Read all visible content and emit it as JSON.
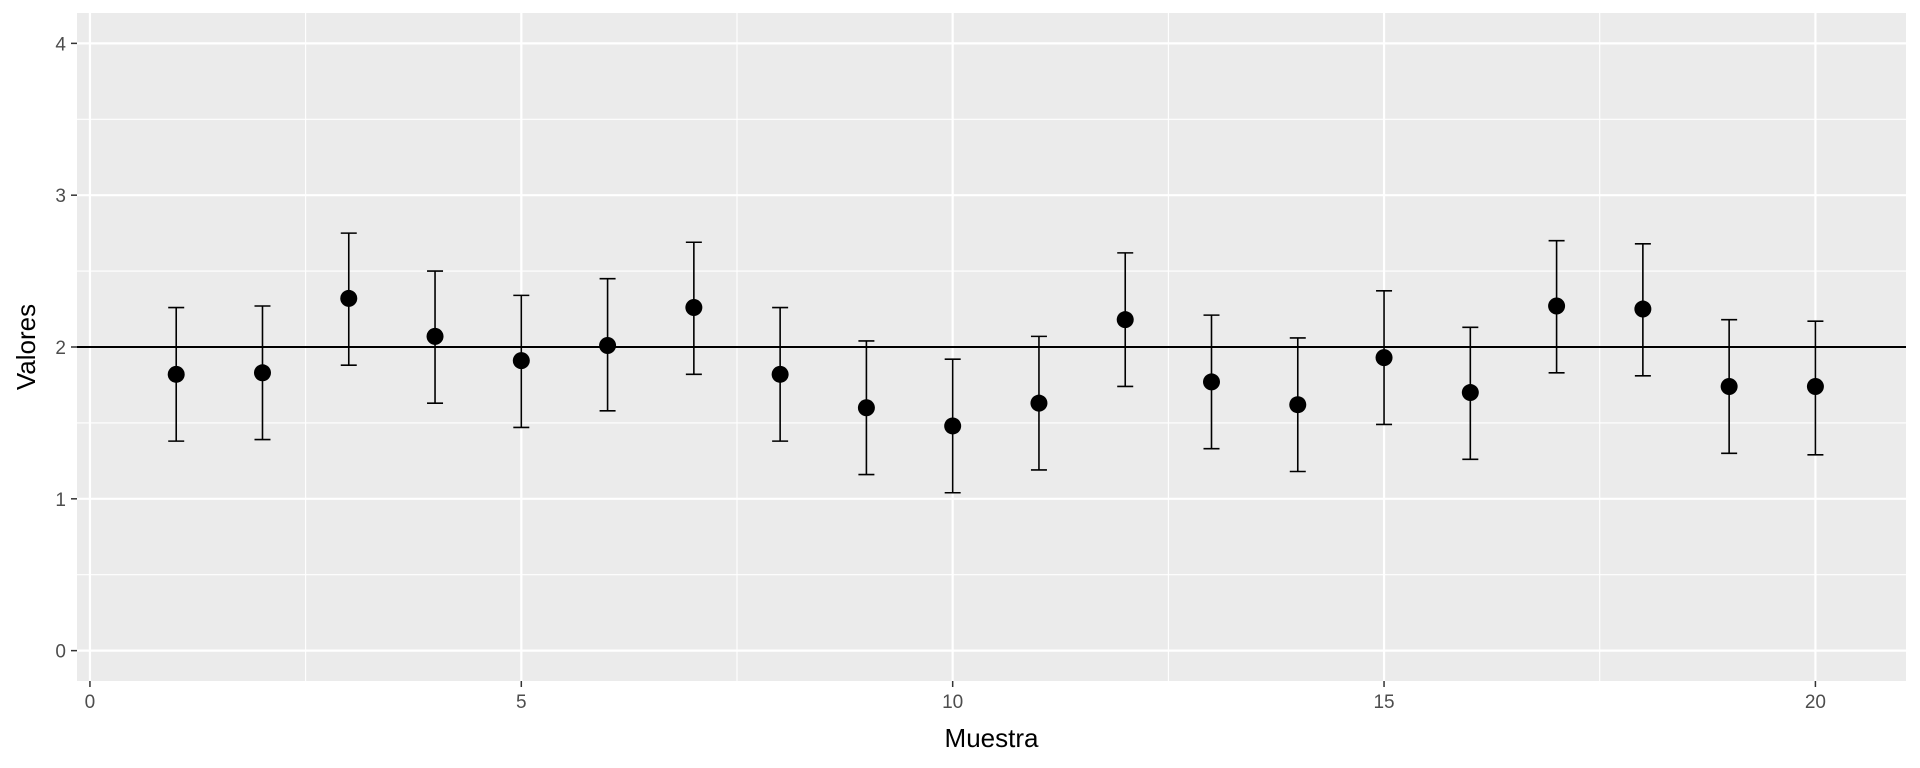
{
  "chart_data": {
    "type": "scatter",
    "title": "",
    "xlabel": "Muestra",
    "ylabel": "Valores",
    "xlim": [
      -0.15,
      21.05
    ],
    "ylim": [
      -0.2,
      4.2
    ],
    "x_ticks": [
      0,
      5,
      10,
      15,
      20
    ],
    "x_tick_labels": [
      "0",
      "5",
      "10",
      "15",
      "20"
    ],
    "y_ticks": [
      0,
      1,
      2,
      3,
      4
    ],
    "y_tick_labels": [
      "0",
      "1",
      "2",
      "3",
      "4"
    ],
    "grid": true,
    "reference_line": 2,
    "series": [
      {
        "x": [
          1,
          2,
          3,
          4,
          5,
          6,
          7,
          8,
          9,
          10,
          11,
          12,
          13,
          14,
          15,
          16,
          17,
          18,
          19,
          20
        ],
        "y": [
          1.82,
          1.83,
          2.32,
          2.07,
          1.91,
          2.01,
          2.26,
          1.82,
          1.6,
          1.48,
          1.63,
          2.18,
          1.77,
          1.62,
          1.93,
          1.7,
          2.27,
          2.25,
          1.74,
          1.74
        ],
        "ymin": [
          1.38,
          1.39,
          1.88,
          1.63,
          1.47,
          1.58,
          1.82,
          1.38,
          1.16,
          1.04,
          1.19,
          1.74,
          1.33,
          1.18,
          1.49,
          1.26,
          1.83,
          1.81,
          1.3,
          1.29
        ],
        "ymax": [
          2.26,
          2.27,
          2.75,
          2.5,
          2.34,
          2.45,
          2.69,
          2.26,
          2.04,
          1.92,
          2.07,
          2.62,
          2.21,
          2.06,
          2.37,
          2.13,
          2.7,
          2.68,
          2.18,
          2.17
        ]
      }
    ],
    "colors": {
      "panel_bg": "#ebebeb",
      "grid": "#ffffff",
      "points": "#000000",
      "errorbars": "#000000",
      "reference_line": "#000000",
      "tick_text": "#4d4d4d",
      "tick_mark": "#333333",
      "title_text": "#000000"
    }
  }
}
